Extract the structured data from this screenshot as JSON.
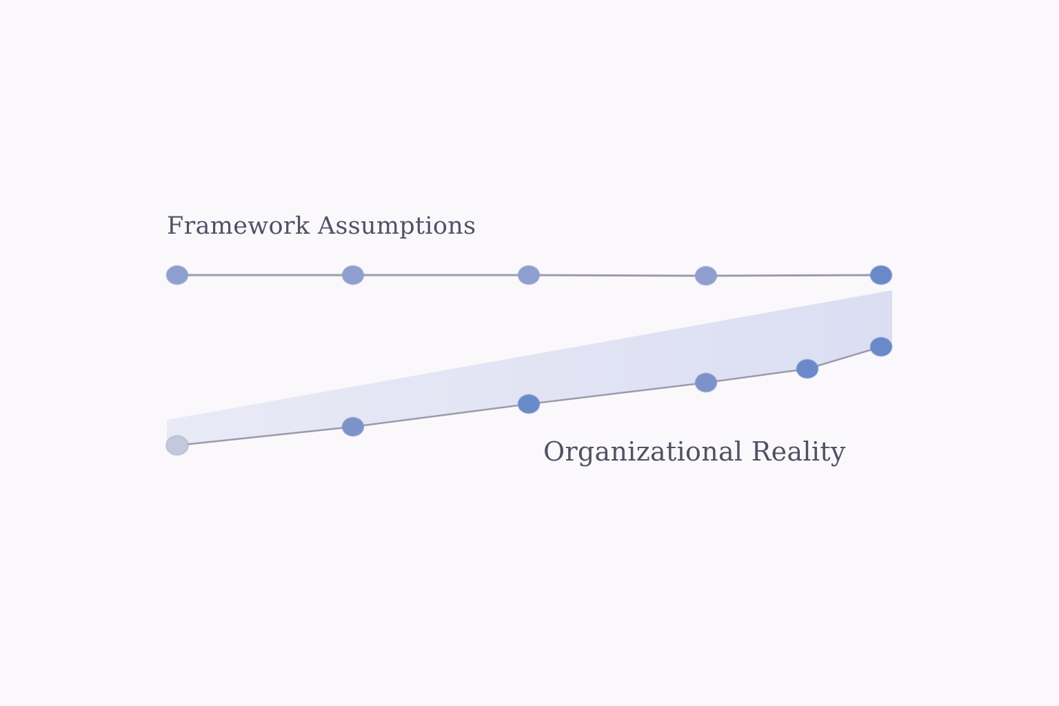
{
  "labels": {
    "framework": "Framework Assumptions",
    "reality": "Organizational Reality"
  },
  "colors": {
    "background": "#fbf8fb",
    "line": "#9a9aaa",
    "text": "#4f5262",
    "gap_fill": "#dfe2f4",
    "node_light": "#8e9fcf",
    "node_mid": "#7d92c8",
    "node_strong": "#6b89c9",
    "node_faded": "#c3c8dc"
  },
  "framework_track": {
    "nodes": [
      {
        "tone": "node_light"
      },
      {
        "tone": "node_light"
      },
      {
        "tone": "node_light"
      },
      {
        "tone": "node_light"
      },
      {
        "tone": "node_strong"
      }
    ]
  },
  "reality_track": {
    "nodes": [
      {
        "tone": "node_faded"
      },
      {
        "tone": "node_mid"
      },
      {
        "tone": "node_strong"
      },
      {
        "tone": "node_mid"
      },
      {
        "tone": "node_strong"
      },
      {
        "tone": "node_strong"
      }
    ]
  }
}
